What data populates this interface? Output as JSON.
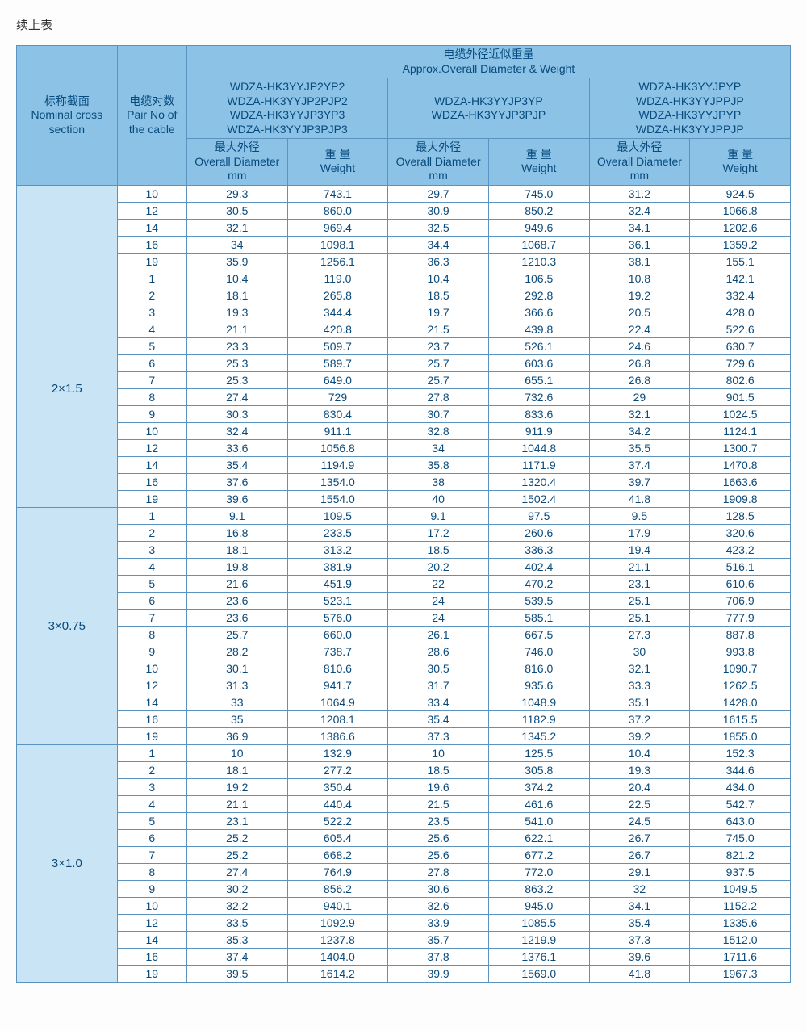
{
  "title": "续上表",
  "header": {
    "nominal_cn": "标称截面",
    "nominal_en1": "Nominal cross",
    "nominal_en2": "section",
    "pair_cn": "电缆对数",
    "pair_en1": "Pair No of",
    "pair_en2": "the cable",
    "top_cn": "电缆外径近似重量",
    "top_en": "Approx.Overall Diameter & Weight",
    "type1_l1": "WDZA-HK3YYJP2YP2",
    "type1_l2": "WDZA-HK3YYJP2PJP2",
    "type1_l3": "WDZA-HK3YYJP3YP3",
    "type1_l4": "WDZA-HK3YYJP3PJP3",
    "type2_l1": "WDZA-HK3YYJP3YP",
    "type2_l2": "WDZA-HK3YYJP3PJP",
    "type3_l1": "WDZA-HK3YYJPYP",
    "type3_l2": "WDZA-HK3YYJPPJP",
    "type3_l3": "WDZA-HK3YYJPYP",
    "type3_l4": "WDZA-HK3YYJPPJP",
    "od_cn": "最大外径",
    "od_en": "Overall Diameter",
    "od_unit": "mm",
    "wt_cn": "重  量",
    "wt_en": "Weight"
  },
  "sections": [
    {
      "label": "",
      "rows": [
        [
          "10",
          "29.3",
          "743.1",
          "29.7",
          "745.0",
          "31.2",
          "924.5"
        ],
        [
          "12",
          "30.5",
          "860.0",
          "30.9",
          "850.2",
          "32.4",
          "1066.8"
        ],
        [
          "14",
          "32.1",
          "969.4",
          "32.5",
          "949.6",
          "34.1",
          "1202.6"
        ],
        [
          "16",
          "34",
          "1098.1",
          "34.4",
          "1068.7",
          "36.1",
          "1359.2"
        ],
        [
          "19",
          "35.9",
          "1256.1",
          "36.3",
          "1210.3",
          "38.1",
          "155.1"
        ]
      ]
    },
    {
      "label": "2×1.5",
      "rows": [
        [
          "1",
          "10.4",
          "119.0",
          "10.4",
          "106.5",
          "10.8",
          "142.1"
        ],
        [
          "2",
          "18.1",
          "265.8",
          "18.5",
          "292.8",
          "19.2",
          "332.4"
        ],
        [
          "3",
          "19.3",
          "344.4",
          "19.7",
          "366.6",
          "20.5",
          "428.0"
        ],
        [
          "4",
          "21.1",
          "420.8",
          "21.5",
          "439.8",
          "22.4",
          "522.6"
        ],
        [
          "5",
          "23.3",
          "509.7",
          "23.7",
          "526.1",
          "24.6",
          "630.7"
        ],
        [
          "6",
          "25.3",
          "589.7",
          "25.7",
          "603.6",
          "26.8",
          "729.6"
        ],
        [
          "7",
          "25.3",
          "649.0",
          "25.7",
          "655.1",
          "26.8",
          "802.6"
        ],
        [
          "8",
          "27.4",
          "729",
          "27.8",
          "732.6",
          "29",
          "901.5"
        ],
        [
          "9",
          "30.3",
          "830.4",
          "30.7",
          "833.6",
          "32.1",
          "1024.5"
        ],
        [
          "10",
          "32.4",
          "911.1",
          "32.8",
          "911.9",
          "34.2",
          "1124.1"
        ],
        [
          "12",
          "33.6",
          "1056.8",
          "34",
          "1044.8",
          "35.5",
          "1300.7"
        ],
        [
          "14",
          "35.4",
          "1194.9",
          "35.8",
          "1171.9",
          "37.4",
          "1470.8"
        ],
        [
          "16",
          "37.6",
          "1354.0",
          "38",
          "1320.4",
          "39.7",
          "1663.6"
        ],
        [
          "19",
          "39.6",
          "1554.0",
          "40",
          "1502.4",
          "41.8",
          "1909.8"
        ]
      ]
    },
    {
      "label": "3×0.75",
      "rows": [
        [
          "1",
          "9.1",
          "109.5",
          "9.1",
          "97.5",
          "9.5",
          "128.5"
        ],
        [
          "2",
          "16.8",
          "233.5",
          "17.2",
          "260.6",
          "17.9",
          "320.6"
        ],
        [
          "3",
          "18.1",
          "313.2",
          "18.5",
          "336.3",
          "19.4",
          "423.2"
        ],
        [
          "4",
          "19.8",
          "381.9",
          "20.2",
          "402.4",
          "21.1",
          "516.1"
        ],
        [
          "5",
          "21.6",
          "451.9",
          "22",
          "470.2",
          "23.1",
          "610.6"
        ],
        [
          "6",
          "23.6",
          "523.1",
          "24",
          "539.5",
          "25.1",
          "706.9"
        ],
        [
          "7",
          "23.6",
          "576.0",
          "24",
          "585.1",
          "25.1",
          "777.9"
        ],
        [
          "8",
          "25.7",
          "660.0",
          "26.1",
          "667.5",
          "27.3",
          "887.8"
        ],
        [
          "9",
          "28.2",
          "738.7",
          "28.6",
          "746.0",
          "30",
          "993.8"
        ],
        [
          "10",
          "30.1",
          "810.6",
          "30.5",
          "816.0",
          "32.1",
          "1090.7"
        ],
        [
          "12",
          "31.3",
          "941.7",
          "31.7",
          "935.6",
          "33.3",
          "1262.5"
        ],
        [
          "14",
          "33",
          "1064.9",
          "33.4",
          "1048.9",
          "35.1",
          "1428.0"
        ],
        [
          "16",
          "35",
          "1208.1",
          "35.4",
          "1182.9",
          "37.2",
          "1615.5"
        ],
        [
          "19",
          "36.9",
          "1386.6",
          "37.3",
          "1345.2",
          "39.2",
          "1855.0"
        ]
      ]
    },
    {
      "label": "3×1.0",
      "rows": [
        [
          "1",
          "10",
          "132.9",
          "10",
          "125.5",
          "10.4",
          "152.3"
        ],
        [
          "2",
          "18.1",
          "277.2",
          "18.5",
          "305.8",
          "19.3",
          "344.6"
        ],
        [
          "3",
          "19.2",
          "350.4",
          "19.6",
          "374.2",
          "20.4",
          "434.0"
        ],
        [
          "4",
          "21.1",
          "440.4",
          "21.5",
          "461.6",
          "22.5",
          "542.7"
        ],
        [
          "5",
          "23.1",
          "522.2",
          "23.5",
          "541.0",
          "24.5",
          "643.0"
        ],
        [
          "6",
          "25.2",
          "605.4",
          "25.6",
          "622.1",
          "26.7",
          "745.0"
        ],
        [
          "7",
          "25.2",
          "668.2",
          "25.6",
          "677.2",
          "26.7",
          "821.2"
        ],
        [
          "8",
          "27.4",
          "764.9",
          "27.8",
          "772.0",
          "29.1",
          "937.5"
        ],
        [
          "9",
          "30.2",
          "856.2",
          "30.6",
          "863.2",
          "32",
          "1049.5"
        ],
        [
          "10",
          "32.2",
          "940.1",
          "32.6",
          "945.0",
          "34.1",
          "1152.2"
        ],
        [
          "12",
          "33.5",
          "1092.9",
          "33.9",
          "1085.5",
          "35.4",
          "1335.6"
        ],
        [
          "14",
          "35.3",
          "1237.8",
          "35.7",
          "1219.9",
          "37.3",
          "1512.0"
        ],
        [
          "16",
          "37.4",
          "1404.0",
          "37.8",
          "1376.1",
          "39.6",
          "1711.6"
        ],
        [
          "19",
          "39.5",
          "1614.2",
          "39.9",
          "1569.0",
          "41.8",
          "1967.3"
        ]
      ]
    }
  ]
}
